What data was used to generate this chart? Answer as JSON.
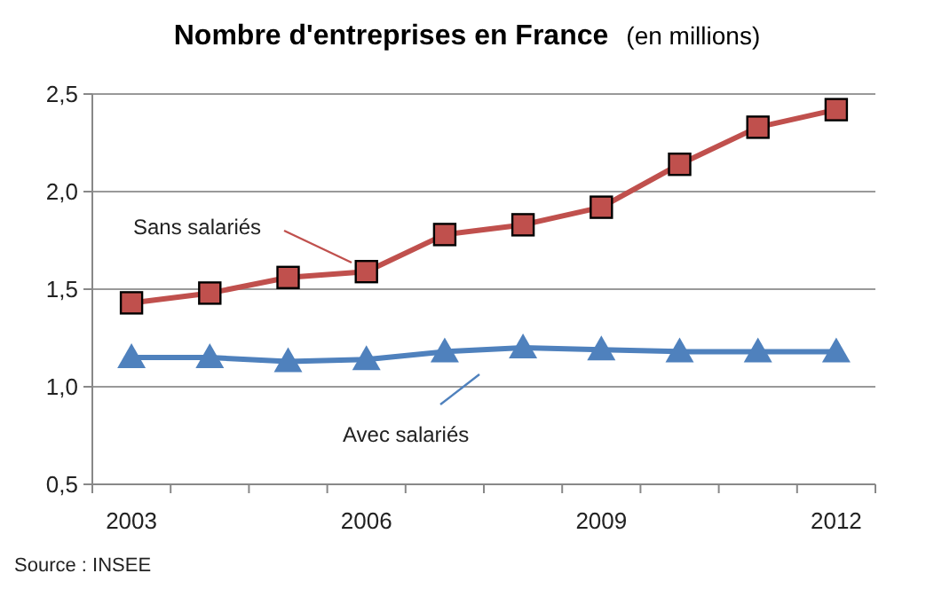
{
  "chart_data": {
    "type": "line",
    "title": "Nombre d'entreprises en France",
    "subtitle": "(en millions)",
    "categories": [
      "2003",
      null,
      null,
      "2006",
      null,
      null,
      "2009",
      null,
      null,
      "2012"
    ],
    "series": [
      {
        "name": "Sans salariés",
        "color": "#c0504d",
        "marker": "square",
        "values": [
          1.43,
          1.48,
          1.56,
          1.59,
          1.78,
          1.83,
          1.92,
          2.14,
          2.33,
          2.42
        ]
      },
      {
        "name": "Avec salariés",
        "color": "#4f81bd",
        "marker": "triangle",
        "values": [
          1.15,
          1.15,
          1.13,
          1.14,
          1.18,
          1.2,
          1.19,
          1.18,
          1.18,
          1.18
        ]
      }
    ],
    "ylim": [
      0.5,
      2.5
    ],
    "yticks": [
      {
        "value": 0.5,
        "label": "0,5"
      },
      {
        "value": 1,
        "label": "1,0"
      },
      {
        "value": 1.5,
        "label": "1,5"
      },
      {
        "value": 2,
        "label": "2,0"
      },
      {
        "value": 2.5,
        "label": "2,5"
      }
    ],
    "grid": "y",
    "annotations": [
      "Source : INSEE"
    ]
  }
}
